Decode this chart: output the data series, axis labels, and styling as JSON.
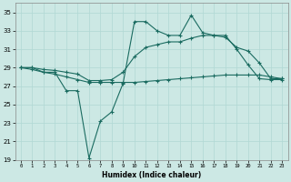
{
  "xlabel": "Humidex (Indice chaleur)",
  "background_color": "#cce8e4",
  "grid_color": "#b0d8d4",
  "line_color": "#1a6b60",
  "xlim": [
    -0.5,
    23.5
  ],
  "ylim": [
    19,
    36
  ],
  "yticks": [
    19,
    21,
    23,
    25,
    27,
    29,
    31,
    33,
    35
  ],
  "xticks": [
    0,
    1,
    2,
    3,
    4,
    5,
    6,
    7,
    8,
    9,
    10,
    11,
    12,
    13,
    14,
    15,
    16,
    17,
    18,
    19,
    20,
    21,
    22,
    23
  ],
  "line1_x": [
    0,
    1,
    2,
    3,
    4,
    5,
    6,
    7,
    8,
    9,
    10,
    11,
    12,
    13,
    14,
    15,
    16,
    17,
    18,
    19,
    20,
    21,
    22,
    23
  ],
  "line1_y": [
    29.0,
    29.0,
    28.5,
    28.5,
    26.5,
    26.5,
    19.2,
    23.2,
    24.2,
    27.3,
    34.0,
    34.0,
    33.0,
    32.5,
    32.5,
    34.7,
    32.8,
    32.5,
    32.5,
    31.0,
    29.3,
    27.8,
    27.7,
    27.7
  ],
  "line2_x": [
    0,
    1,
    2,
    3,
    4,
    5,
    6,
    7,
    8,
    9,
    10,
    11,
    12,
    13,
    14,
    15,
    16,
    17,
    18,
    19,
    20,
    21,
    22,
    23
  ],
  "line2_y": [
    29.0,
    29.0,
    28.8,
    28.7,
    28.5,
    28.3,
    27.6,
    27.6,
    27.7,
    28.5,
    30.2,
    31.2,
    31.5,
    31.8,
    31.8,
    32.2,
    32.5,
    32.5,
    32.3,
    31.2,
    30.8,
    29.5,
    27.8,
    27.8
  ],
  "line3_x": [
    0,
    1,
    2,
    3,
    4,
    5,
    6,
    7,
    8,
    9,
    10,
    11,
    12,
    13,
    14,
    15,
    16,
    17,
    18,
    19,
    20,
    21,
    22,
    23
  ],
  "line3_y": [
    29.0,
    28.8,
    28.5,
    28.3,
    28.0,
    27.7,
    27.4,
    27.4,
    27.4,
    27.4,
    27.4,
    27.5,
    27.6,
    27.7,
    27.8,
    27.9,
    28.0,
    28.1,
    28.2,
    28.2,
    28.2,
    28.2,
    28.0,
    27.8
  ]
}
